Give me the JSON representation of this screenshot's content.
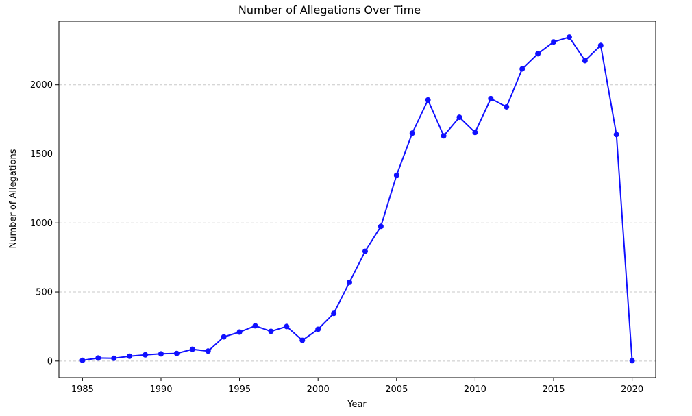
{
  "chart_data": {
    "type": "line",
    "title": "Number of Allegations Over Time",
    "xlabel": "Year",
    "ylabel": "Number of Allegations",
    "xlim": [
      1983.5,
      2021.5
    ],
    "ylim": [
      -120,
      2460
    ],
    "xticks": [
      1985,
      1990,
      1995,
      2000,
      2005,
      2010,
      2015,
      2020
    ],
    "yticks": [
      0,
      500,
      1000,
      1500,
      2000
    ],
    "grid": "horizontal dashed",
    "color": "#1010ff",
    "series": [
      {
        "x": [
          1985,
          1986,
          1987,
          1988,
          1989,
          1990,
          1991,
          1992,
          1993,
          1994,
          1995,
          1996,
          1997,
          1998,
          1999,
          2000,
          2001,
          2002,
          2003,
          2004,
          2005,
          2006,
          2007,
          2008,
          2009,
          2010,
          2011,
          2012,
          2013,
          2014,
          2015,
          2016,
          2017,
          2018,
          2019,
          2020
        ],
        "values": [
          5,
          22,
          20,
          35,
          45,
          52,
          55,
          85,
          72,
          175,
          210,
          255,
          215,
          250,
          150,
          230,
          345,
          570,
          795,
          975,
          1345,
          1650,
          1890,
          1630,
          1765,
          1655,
          1900,
          1840,
          2115,
          2225,
          2310,
          2345,
          2175,
          2285,
          1640,
          2
        ]
      }
    ]
  }
}
